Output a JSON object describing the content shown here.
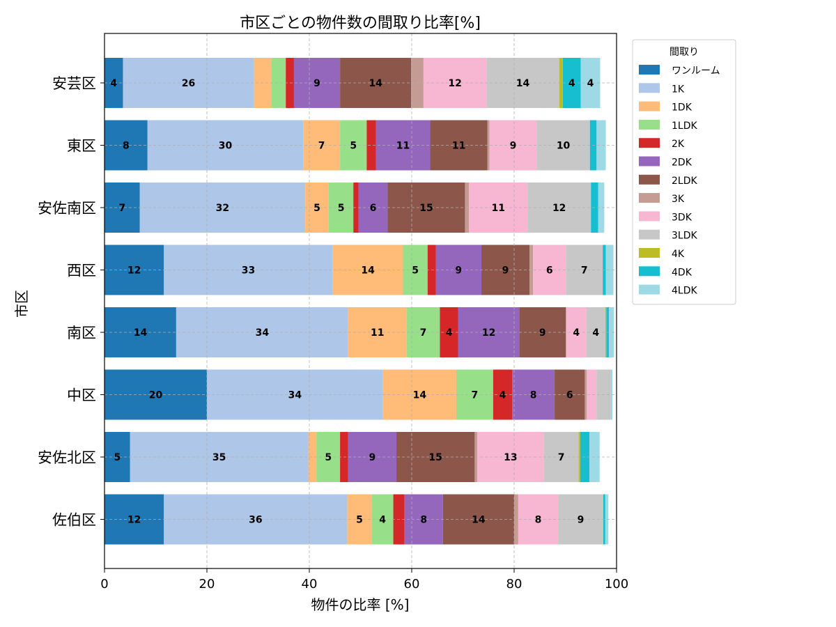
{
  "chart_data": {
    "type": "bar",
    "orientation": "horizontal",
    "stacked": true,
    "title": "市区ごとの物件数の間取り比率[%]",
    "xlabel": "物件の比率 [%]",
    "ylabel": "市区",
    "xlim": [
      0,
      100
    ],
    "xticks": [
      0,
      20,
      40,
      60,
      80,
      100
    ],
    "grid": true,
    "legend_title": "間取り",
    "legend_position": "outside-top-right",
    "label_threshold": 3.5,
    "categories": [
      "安芸区",
      "東区",
      "安佐南区",
      "西区",
      "南区",
      "中区",
      "安佐北区",
      "佐伯区"
    ],
    "series": [
      {
        "name": "ワンルーム",
        "color": "#1f77b4",
        "values": [
          3.6,
          8.4,
          6.9,
          11.6,
          14.0,
          20.0,
          5.0,
          11.6
        ]
      },
      {
        "name": "1K",
        "color": "#aec7e8",
        "values": [
          25.6,
          30.4,
          32.3,
          33.0,
          33.6,
          34.4,
          34.8,
          35.8
        ]
      },
      {
        "name": "1DK",
        "color": "#ffbb78",
        "values": [
          3.4,
          7.2,
          4.6,
          13.7,
          11.4,
          14.3,
          1.6,
          4.8
        ]
      },
      {
        "name": "1LDK",
        "color": "#98df8a",
        "values": [
          2.8,
          5.2,
          4.8,
          4.8,
          6.5,
          7.2,
          4.6,
          4.2
        ]
      },
      {
        "name": "2K",
        "color": "#d62728",
        "values": [
          1.6,
          1.8,
          1.0,
          1.6,
          3.6,
          3.7,
          1.6,
          2.2
        ]
      },
      {
        "name": "2DK",
        "color": "#9467bd",
        "values": [
          9.0,
          10.6,
          5.7,
          8.9,
          11.9,
          8.3,
          9.4,
          7.5
        ]
      },
      {
        "name": "2LDK",
        "color": "#8c564b",
        "values": [
          13.9,
          11.2,
          15.1,
          9.4,
          9.1,
          5.9,
          15.3,
          13.9
        ]
      },
      {
        "name": "3K",
        "color": "#c49c94",
        "values": [
          2.4,
          0.4,
          0.8,
          0.7,
          0.1,
          0.4,
          0.5,
          0.8
        ]
      },
      {
        "name": "3DK",
        "color": "#f7b6d2",
        "values": [
          12.3,
          9.2,
          11.4,
          6.4,
          3.9,
          1.9,
          13.0,
          7.8
        ]
      },
      {
        "name": "3LDK",
        "color": "#c7c7c7",
        "values": [
          14.2,
          10.4,
          12.4,
          7.2,
          3.7,
          2.8,
          6.8,
          8.8
        ]
      },
      {
        "name": "4K",
        "color": "#bcbd22",
        "values": [
          0.7,
          0.0,
          0.0,
          0.0,
          0.2,
          0.0,
          0.3,
          0.0
        ]
      },
      {
        "name": "4DK",
        "color": "#17becf",
        "values": [
          3.5,
          1.3,
          1.4,
          0.6,
          0.5,
          0.0,
          1.8,
          0.4
        ]
      },
      {
        "name": "4LDK",
        "color": "#9edae5",
        "values": [
          3.8,
          1.8,
          1.2,
          1.5,
          1.0,
          0.3,
          2.0,
          0.6
        ]
      }
    ]
  }
}
